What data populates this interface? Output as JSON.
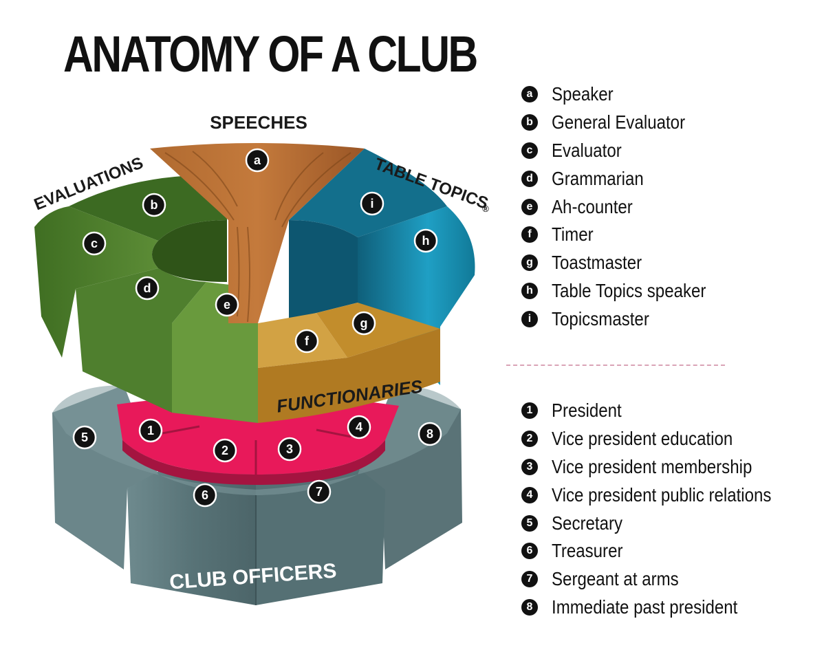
{
  "title": "ANATOMY OF A CLUB",
  "groups": {
    "speeches": "SPEECHES",
    "evaluations": "EVALUATIONS",
    "table_topics": "TABLE TOPICS",
    "table_topics_mark": "®",
    "functionaries": "FUNCTIONARIES",
    "club_officers": "CLUB OFFICERS"
  },
  "roles": [
    {
      "key": "a",
      "label": "Speaker"
    },
    {
      "key": "b",
      "label": "General Evaluator"
    },
    {
      "key": "c",
      "label": "Evaluator"
    },
    {
      "key": "d",
      "label": "Grammarian"
    },
    {
      "key": "e",
      "label": "Ah-counter"
    },
    {
      "key": "f",
      "label": "Timer"
    },
    {
      "key": "g",
      "label": "Toastmaster"
    },
    {
      "key": "h",
      "label": "Table Topics speaker"
    },
    {
      "key": "i",
      "label": "Topicsmaster"
    }
  ],
  "officers": [
    {
      "key": "1",
      "label": "President"
    },
    {
      "key": "2",
      "label": "Vice president education"
    },
    {
      "key": "3",
      "label": "Vice president membership"
    },
    {
      "key": "4",
      "label": "Vice president public relations"
    },
    {
      "key": "5",
      "label": "Secretary"
    },
    {
      "key": "6",
      "label": "Treasurer"
    },
    {
      "key": "7",
      "label": "Sergeant at arms"
    },
    {
      "key": "8",
      "label": "Immediate past president"
    }
  ],
  "colors": {
    "speeches_wood": "#a8642e",
    "evaluations_green": "#4e7a2c",
    "table_topics_blue": "#1a86a5",
    "functionaries_gold": "#c9952e",
    "officers_gray": "#5f7a7e",
    "officers_inner_red": "#e8195a",
    "divider": "#d9a3b6"
  }
}
